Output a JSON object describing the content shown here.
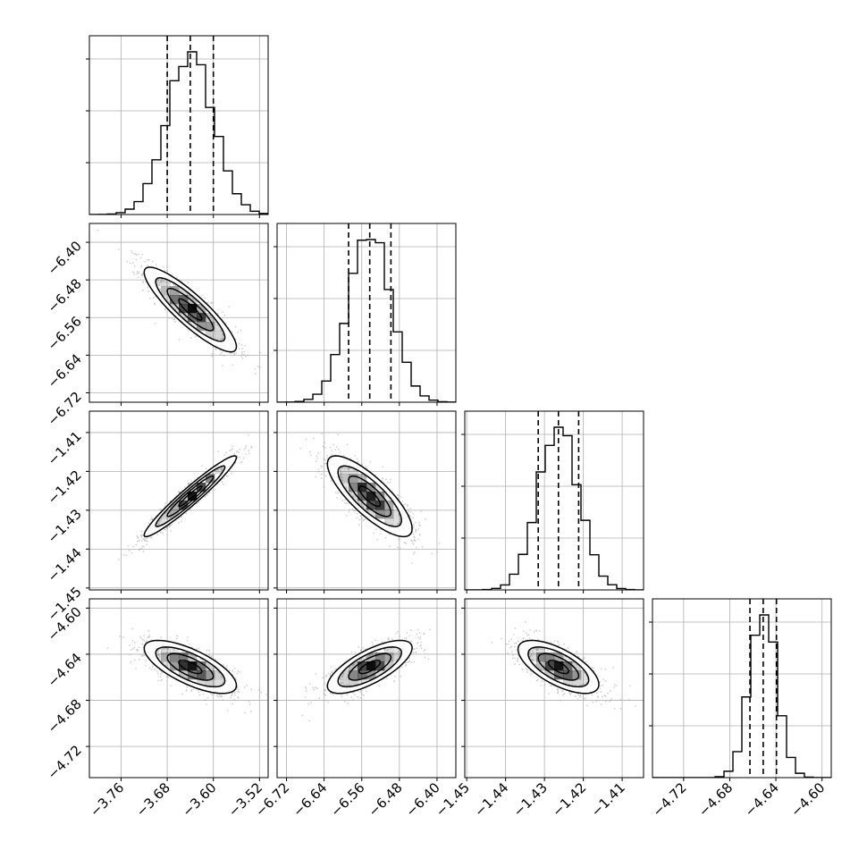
{
  "chart_data": {
    "type": "corner",
    "title": "",
    "parameters": [
      {
        "key": "p0",
        "label": "",
        "range": [
          -3.815,
          -3.505
        ],
        "mean": -3.64,
        "sigma": 0.04,
        "quantiles": [
          -3.68,
          -3.64,
          -3.6
        ],
        "ticks": [
          {
            "value": -3.76,
            "label": "−3.76"
          },
          {
            "value": -3.68,
            "label": "−3.68"
          },
          {
            "value": -3.6,
            "label": "−3.60"
          },
          {
            "value": -3.52,
            "label": "−3.52"
          }
        ]
      },
      {
        "key": "p1",
        "label": "",
        "range": [
          -6.74,
          -6.36
        ],
        "mean": -6.543,
        "sigma": 0.045,
        "quantiles": [
          -6.588,
          -6.543,
          -6.498
        ],
        "ticks": [
          {
            "value": -6.72,
            "label": "−6.72"
          },
          {
            "value": -6.64,
            "label": "−6.64"
          },
          {
            "value": -6.56,
            "label": "−6.56"
          },
          {
            "value": -6.48,
            "label": "−6.48"
          },
          {
            "value": -6.4,
            "label": "−6.40"
          }
        ]
      },
      {
        "key": "p2",
        "label": "",
        "range": [
          -1.4505,
          -1.4045
        ],
        "mean": -1.4264,
        "sigma": 0.0052,
        "quantiles": [
          -1.4316,
          -1.4264,
          -1.4212
        ],
        "ticks": [
          {
            "value": -1.45,
            "label": "−1.45"
          },
          {
            "value": -1.44,
            "label": "−1.44"
          },
          {
            "value": -1.43,
            "label": "−1.43"
          },
          {
            "value": -1.42,
            "label": "−1.42"
          },
          {
            "value": -1.41,
            "label": "−1.41"
          }
        ]
      },
      {
        "key": "p3",
        "label": "",
        "range": [
          -4.747,
          -4.592
        ],
        "mean": -4.651,
        "sigma": 0.0115,
        "quantiles": [
          -4.6625,
          -4.651,
          -4.6395
        ],
        "ticks": [
          {
            "value": -4.72,
            "label": "−4.72"
          },
          {
            "value": -4.68,
            "label": "−4.68"
          },
          {
            "value": -4.64,
            "label": "−4.64"
          },
          {
            "value": -4.6,
            "label": "−4.60"
          }
        ]
      }
    ],
    "correlations": [
      {
        "pair": [
          0,
          1
        ],
        "rho": -0.88
      },
      {
        "pair": [
          0,
          2
        ],
        "rho": 0.96
      },
      {
        "pair": [
          1,
          2
        ],
        "rho": -0.8
      },
      {
        "pair": [
          0,
          3
        ],
        "rho": -0.7
      },
      {
        "pair": [
          1,
          3
        ],
        "rho": 0.72
      },
      {
        "pair": [
          2,
          3
        ],
        "rho": -0.66
      }
    ],
    "histogram_bins": 20,
    "contour_levels_sigma": [
      0.5,
      1.0,
      1.5,
      2.0
    ],
    "grid": true,
    "colors": {
      "line": "#000000",
      "points": "#9a9a9a",
      "grid": "#b0b0b0",
      "density": "#000000"
    }
  }
}
